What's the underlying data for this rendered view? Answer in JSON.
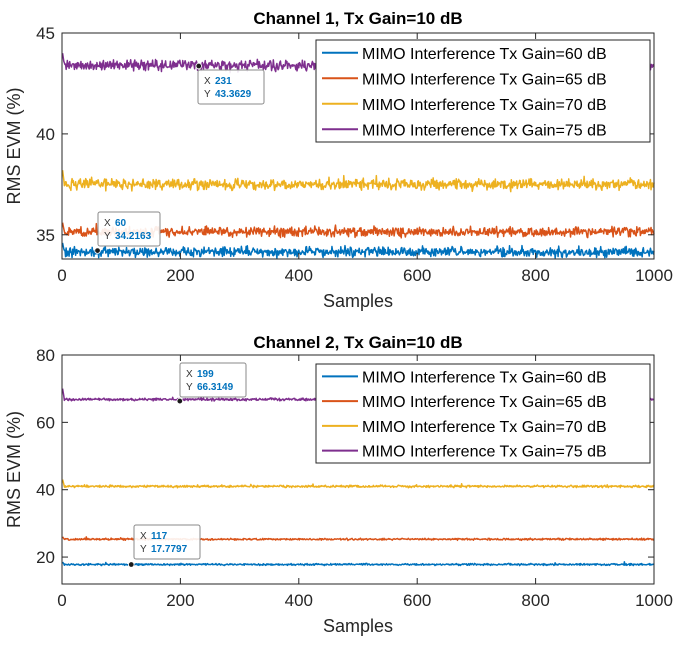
{
  "chart_data": [
    {
      "type": "line",
      "title": "Channel 1, Tx Gain=10 dB",
      "xlabel": "Samples",
      "ylabel": "RMS EVM (%)",
      "xlim": [
        0,
        1000
      ],
      "ylim": [
        33.8,
        45
      ],
      "xticks": [
        0,
        200,
        400,
        600,
        800,
        1000
      ],
      "yticks": [
        35,
        40,
        45
      ],
      "x_range": [
        1,
        1000
      ],
      "grid": false,
      "legend_position": "top-right",
      "series": [
        {
          "name": "MIMO Interference Tx Gain=60 dB",
          "color": "#0072bd",
          "mean": 34.15,
          "noise": 0.22,
          "start": 34.6
        },
        {
          "name": "MIMO Interference Tx Gain=65 dB",
          "color": "#d95319",
          "mean": 35.15,
          "noise": 0.22,
          "start": 35.6
        },
        {
          "name": "MIMO Interference Tx Gain=70 dB",
          "color": "#edb120",
          "mean": 37.5,
          "noise": 0.25,
          "start": 38.2
        },
        {
          "name": "MIMO Interference Tx Gain=75 dB",
          "color": "#7e2f8e",
          "mean": 43.4,
          "noise": 0.25,
          "start": 44.0
        }
      ],
      "datatips": [
        {
          "x": 231,
          "y": 43.3629,
          "series": 3,
          "x_text": "231",
          "y_text": "43.3629"
        },
        {
          "x": 60,
          "y": 34.2163,
          "series": 0,
          "x_text": "60",
          "y_text": "34.2163"
        }
      ]
    },
    {
      "type": "line",
      "title": "Channel 2, Tx Gain=10 dB",
      "xlabel": "Samples",
      "ylabel": "RMS EVM (%)",
      "xlim": [
        0,
        1000
      ],
      "ylim": [
        12,
        80
      ],
      "xticks": [
        0,
        200,
        400,
        600,
        800,
        1000
      ],
      "yticks": [
        20,
        40,
        60,
        80
      ],
      "x_range": [
        1,
        1000
      ],
      "grid": false,
      "legend_position": "top-right",
      "series": [
        {
          "name": "MIMO Interference Tx Gain=60 dB",
          "color": "#0072bd",
          "mean": 17.8,
          "noise": 0.25,
          "start": 18.5
        },
        {
          "name": "MIMO Interference Tx Gain=65 dB",
          "color": "#d95319",
          "mean": 25.3,
          "noise": 0.25,
          "start": 26.0
        },
        {
          "name": "MIMO Interference Tx Gain=70 dB",
          "color": "#edb120",
          "mean": 41.0,
          "noise": 0.3,
          "start": 43.0
        },
        {
          "name": "MIMO Interference Tx Gain=75 dB",
          "color": "#7e2f8e",
          "mean": 66.8,
          "noise": 0.35,
          "start": 70.0
        }
      ],
      "datatips": [
        {
          "x": 199,
          "y": 66.3149,
          "series": 3,
          "x_text": "199",
          "y_text": "66.3149"
        },
        {
          "x": 117,
          "y": 17.7797,
          "series": 0,
          "x_text": "117",
          "y_text": "17.7797"
        }
      ]
    }
  ]
}
